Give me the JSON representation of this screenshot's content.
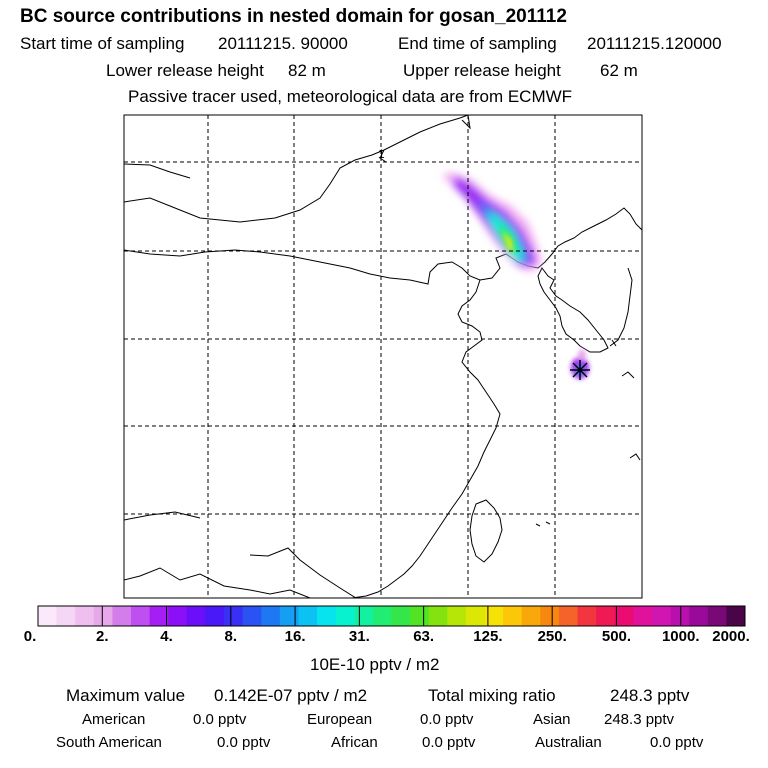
{
  "header": {
    "title": "BC  source contributions in nested domain for gosan_201112",
    "start_label": "Start time of sampling",
    "start_value": "20111215. 90000",
    "end_label": "End time of sampling",
    "end_value": "20111215.120000",
    "lower_label": "Lower release height",
    "lower_value": "82 m",
    "upper_label": "Upper release height",
    "upper_value": "62 m",
    "note": "Passive tracer used, meteorological data are from ECMWF"
  },
  "map": {
    "contour_label": "1",
    "receptor": "gosan"
  },
  "legend": {
    "unit": "10E-10 pptv / m2",
    "ticks": [
      "0.",
      "2.",
      "4.",
      "8.",
      "16.",
      "31.",
      "63.",
      "125.",
      "250.",
      "500.",
      "1000.",
      "2000."
    ],
    "colors": [
      "#fbe8fb",
      "#f6d6f6",
      "#efbff0",
      "#e7a8ea",
      "#d27de9",
      "#bf4ff1",
      "#a51ff5",
      "#8b0ff7",
      "#6a0ff7",
      "#4a19f7",
      "#3a2ff5",
      "#2b53f3",
      "#1e78f3",
      "#159ff3",
      "#0cc2f2",
      "#07e4ee",
      "#08f2cf",
      "#14f0a1",
      "#22ec72",
      "#34e64a",
      "#52e324",
      "#84e30f",
      "#b5e608",
      "#dde706",
      "#f7e207",
      "#fbc708",
      "#f9a80b",
      "#f7880f",
      "#f5632a",
      "#f2363f",
      "#ef1a53",
      "#ea0c72",
      "#e0119a",
      "#d115b0",
      "#b80fad",
      "#9a0a9a",
      "#7a0978",
      "#4a0548"
    ]
  },
  "summary": {
    "max_label": "Maximum value",
    "max_value": "0.142E-07 pptv / m2",
    "total_label": "Total mixing ratio",
    "total_value": "248.3 pptv",
    "regions": [
      {
        "name": "American",
        "value": "0.0 pptv"
      },
      {
        "name": "European",
        "value": "0.0 pptv"
      },
      {
        "name": "Asian",
        "value": "248.3 pptv"
      },
      {
        "name": "South American",
        "value": "0.0 pptv"
      },
      {
        "name": "African",
        "value": "0.0 pptv"
      },
      {
        "name": "Australian",
        "value": "0.0 pptv"
      }
    ]
  }
}
